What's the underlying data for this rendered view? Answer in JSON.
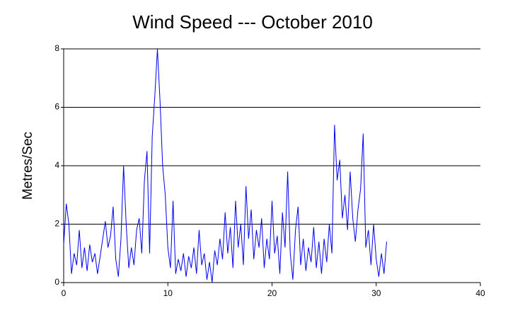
{
  "chart_data": {
    "type": "line",
    "title": "Wind Speed --- October 2010",
    "ylabel": "Metres/Sec",
    "x": [
      0,
      0.25,
      0.5,
      0.75,
      1,
      1.25,
      1.5,
      1.75,
      2,
      2.25,
      2.5,
      2.75,
      3,
      3.25,
      3.5,
      3.75,
      4,
      4.25,
      4.5,
      4.75,
      5,
      5.25,
      5.5,
      5.75,
      6,
      6.25,
      6.5,
      6.75,
      7,
      7.25,
      7.5,
      7.75,
      8,
      8.25,
      8.5,
      8.75,
      9,
      9.25,
      9.5,
      9.75,
      10,
      10.25,
      10.5,
      10.75,
      11,
      11.25,
      11.5,
      11.75,
      12,
      12.25,
      12.5,
      12.75,
      13,
      13.25,
      13.5,
      13.75,
      14,
      14.25,
      14.5,
      14.75,
      15,
      15.25,
      15.5,
      15.75,
      16,
      16.25,
      16.5,
      16.75,
      17,
      17.25,
      17.5,
      17.75,
      18,
      18.25,
      18.5,
      18.75,
      19,
      19.25,
      19.5,
      19.75,
      20,
      20.25,
      20.5,
      20.75,
      21,
      21.25,
      21.5,
      21.75,
      22,
      22.25,
      22.5,
      22.75,
      23,
      23.25,
      23.5,
      23.75,
      24,
      24.25,
      24.5,
      24.75,
      25,
      25.25,
      25.5,
      25.75,
      26,
      26.25,
      26.5,
      26.75,
      27,
      27.25,
      27.5,
      27.75,
      28,
      28.25,
      28.5,
      28.75,
      29,
      29.25,
      29.5,
      29.75,
      30,
      30.25,
      30.5,
      30.75,
      31
    ],
    "series": [
      {
        "name": "Wind Speed",
        "color": "#0000ee",
        "values": [
          1.3,
          2.7,
          2.0,
          0.3,
          1.0,
          0.6,
          1.8,
          0.5,
          1.2,
          0.4,
          1.3,
          0.7,
          1.0,
          0.3,
          0.9,
          1.5,
          2.1,
          1.2,
          1.6,
          2.6,
          0.8,
          0.2,
          1.5,
          4.0,
          2.0,
          0.5,
          1.2,
          0.6,
          1.8,
          2.2,
          1.0,
          3.5,
          4.5,
          1.0,
          5.0,
          6.4,
          8.0,
          6.2,
          4.0,
          3.0,
          1.2,
          0.5,
          2.8,
          0.3,
          0.8,
          0.4,
          1.0,
          0.2,
          0.9,
          0.5,
          1.2,
          0.3,
          1.8,
          0.6,
          1.0,
          0.1,
          0.7,
          0.0,
          1.1,
          0.6,
          1.5,
          0.8,
          2.4,
          1.0,
          1.9,
          0.5,
          2.8,
          1.2,
          2.0,
          0.6,
          3.3,
          1.5,
          2.5,
          0.8,
          1.8,
          1.2,
          2.2,
          0.5,
          1.5,
          0.8,
          2.8,
          1.0,
          1.6,
          0.3,
          2.4,
          1.2,
          3.8,
          1.0,
          0.1,
          1.8,
          2.6,
          0.6,
          1.5,
          0.4,
          1.2,
          0.7,
          1.9,
          0.5,
          1.4,
          0.3,
          1.5,
          0.7,
          2.0,
          1.0,
          5.4,
          3.5,
          4.2,
          2.2,
          3.0,
          1.8,
          3.8,
          2.2,
          1.4,
          2.5,
          3.2,
          5.1,
          1.2,
          1.8,
          0.6,
          2.0,
          0.8,
          0.2,
          1.0,
          0.3,
          1.4
        ]
      }
    ],
    "xlim": [
      0,
      40
    ],
    "xticks": [
      0,
      10,
      20,
      30,
      40
    ],
    "ylim": [
      0,
      8
    ],
    "yticks": [
      0,
      2,
      4,
      6,
      8
    ],
    "grid": true
  }
}
